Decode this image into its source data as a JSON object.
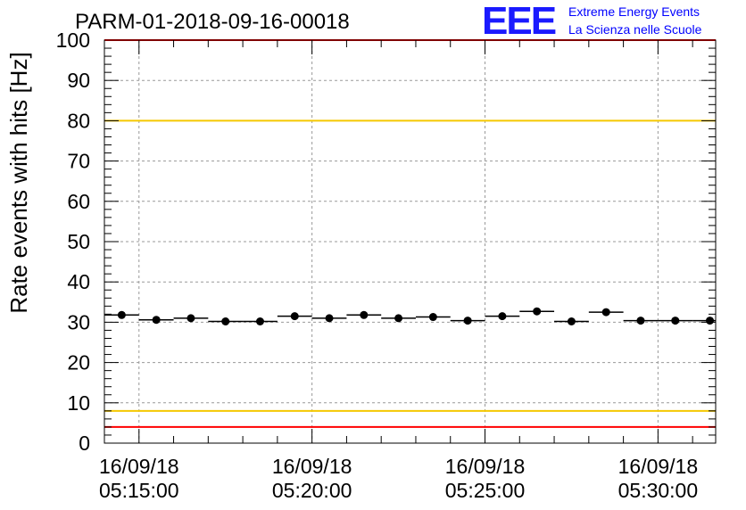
{
  "header": {
    "run_title": "PARM-01-2018-09-16-00018",
    "logo_mark": "EEE",
    "logo_line1": "Extreme Energy Events",
    "logo_line2": "La Scienza nelle Scuole"
  },
  "chart_data": {
    "type": "scatter",
    "title": "PARM-01-2018-09-16-00018",
    "ylabel": "Rate events with hits [Hz]",
    "xlabel": "",
    "ylim": [
      0,
      100
    ],
    "xlim": [
      "2018-09-16 05:14:00",
      "2018-09-16 05:31:40"
    ],
    "grid": true,
    "y_ticks": [
      0,
      10,
      20,
      30,
      40,
      50,
      60,
      70,
      80,
      90,
      100
    ],
    "x_ticks": [
      {
        "value": "2018-09-16 05:15:00",
        "label_date": "16/09/18",
        "label_time": "05:15:00"
      },
      {
        "value": "2018-09-16 05:20:00",
        "label_date": "16/09/18",
        "label_time": "05:20:00"
      },
      {
        "value": "2018-09-16 05:25:00",
        "label_date": "16/09/18",
        "label_time": "05:25:00"
      },
      {
        "value": "2018-09-16 05:30:00",
        "label_date": "16/09/18",
        "label_time": "05:30:00"
      }
    ],
    "bin_width_seconds": 60,
    "x": [
      "05:14:30",
      "05:15:30",
      "05:16:30",
      "05:17:30",
      "05:18:30",
      "05:19:30",
      "05:20:30",
      "05:21:30",
      "05:22:30",
      "05:23:30",
      "05:24:30",
      "05:25:30",
      "05:26:30",
      "05:27:30",
      "05:28:30",
      "05:29:30",
      "05:30:30",
      "05:31:30"
    ],
    "values": [
      31.8,
      30.6,
      31.0,
      30.2,
      30.2,
      31.5,
      31.0,
      31.8,
      31.0,
      31.3,
      30.4,
      31.5,
      32.7,
      30.2,
      32.5,
      30.4,
      30.4,
      30.4
    ],
    "reference_lines": [
      {
        "y": 100,
        "color": "#ff0000"
      },
      {
        "y": 80,
        "color": "#f5c800"
      },
      {
        "y": 8,
        "color": "#f5c800"
      },
      {
        "y": 4,
        "color": "#ff0000"
      }
    ],
    "colors": {
      "points": "#000000",
      "grid": "#999999",
      "axis": "#000000"
    }
  }
}
